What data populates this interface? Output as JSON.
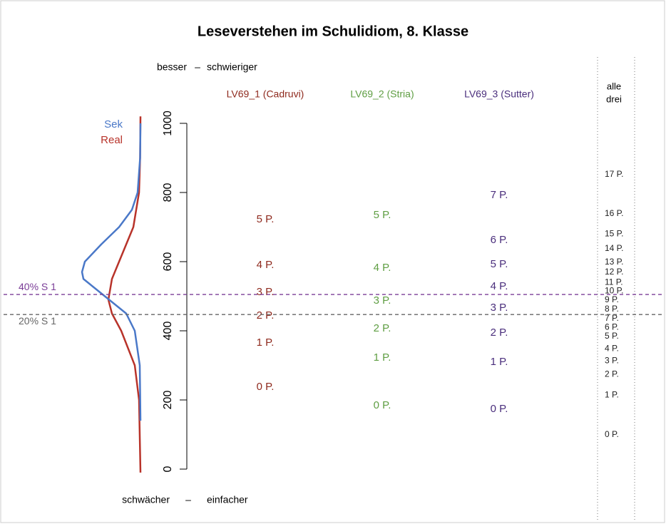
{
  "chart_data": {
    "type": "wrightmap",
    "title": "Leseverstehen im Schulidiom, 8. Klasse",
    "top_labels": [
      "besser",
      "–",
      "schwieriger"
    ],
    "bottom_labels": [
      "schwächer",
      "–",
      "einfacher"
    ],
    "ylim": [
      0,
      1000
    ],
    "yticks": [
      0,
      200,
      400,
      600,
      800,
      1000
    ],
    "density_xlim": [
      0,
      100
    ],
    "curves": [
      {
        "name": "Sek",
        "color": "#4a78c8",
        "y": [
          140,
          300,
          400,
          450,
          500,
          550,
          570,
          600,
          650,
          700,
          750,
          800,
          900,
          1000
        ],
        "values": [
          0,
          1,
          8,
          20,
          50,
          80,
          82,
          78,
          55,
          30,
          12,
          4,
          0.5,
          0
        ]
      },
      {
        "name": "Real",
        "color": "#b8332a",
        "y": [
          -10,
          200,
          300,
          400,
          450,
          490,
          550,
          600,
          650,
          700,
          800,
          900,
          1020
        ],
        "values": [
          0,
          2,
          8,
          27,
          40,
          45,
          40,
          30,
          20,
          10,
          2,
          0.5,
          0
        ]
      }
    ],
    "series": [
      {
        "name": "LV69_1 (Cadruvi)",
        "color": "#8f2a1e",
        "labels": [
          "0 P.",
          "1 P.",
          "2 P.",
          "3 P.",
          "4 P.",
          "5 P."
        ],
        "values": [
          237,
          365,
          443,
          511,
          590,
          722
        ]
      },
      {
        "name": "LV69_2 (Stria)",
        "color": "#5f9e43",
        "labels": [
          "0 P.",
          "1 P.",
          "2 P.",
          "3 P.",
          "4 P.",
          "5 P."
        ],
        "values": [
          183,
          322,
          406,
          487,
          581,
          734
        ]
      },
      {
        "name": "LV69_3 (Sutter)",
        "color": "#4a2e7c",
        "labels": [
          "0 P.",
          "1 P.",
          "2 P.",
          "3 P.",
          "4 P.",
          "5 P.",
          "6 P.",
          "7 P."
        ],
        "values": [
          173,
          309,
          394,
          466,
          528,
          592,
          662,
          792
        ]
      }
    ],
    "combined": {
      "name": [
        "alle",
        "drei"
      ],
      "color": "#222222",
      "labels": [
        "0 P.",
        "1 P.",
        "2 P.",
        "3 P.",
        "4 P.",
        "5 P.",
        "6 P.",
        "7 P.",
        "8 P.",
        "9 P.",
        "10 P.",
        "11 P.",
        "12 P.",
        "13 P.",
        "14 P.",
        "15 P.",
        "16 P.",
        "17 P."
      ],
      "values": [
        99,
        214,
        274,
        313,
        348,
        384,
        410,
        435,
        462,
        489,
        515,
        540,
        569,
        598,
        637,
        680,
        738,
        852
      ]
    },
    "cutoffs": [
      {
        "label": "40% S 1",
        "value": 505,
        "color": "#7a3d97"
      },
      {
        "label": "20% S 1",
        "value": 447,
        "color": "#666666"
      }
    ]
  }
}
